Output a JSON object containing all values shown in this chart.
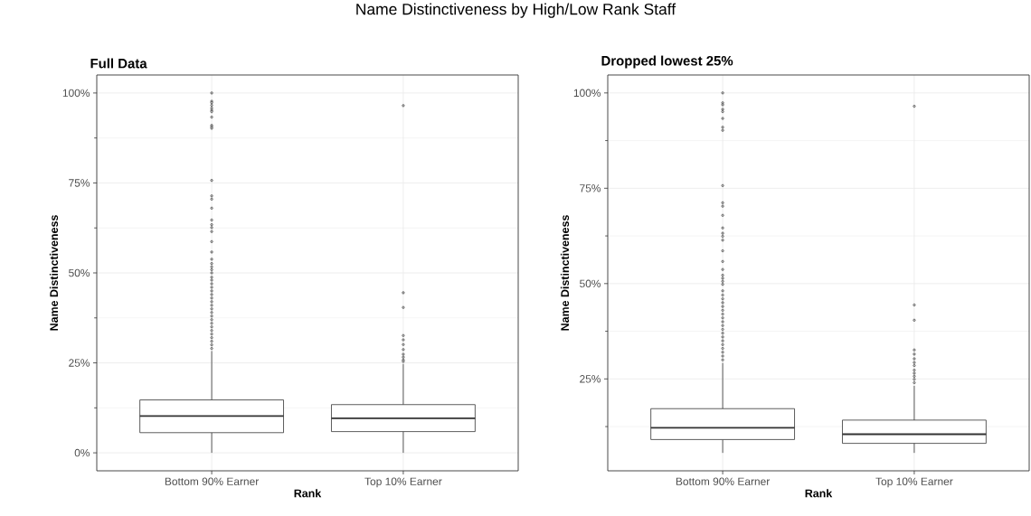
{
  "chart_data": [
    {
      "type": "box",
      "title": "Full Data",
      "xlabel": "Rank",
      "ylabel": "Name Distinctiveness",
      "annotations": [
        "Name Distinctiveness by High/Low Rank Staff"
      ],
      "categories": [
        "Bottom 90% Earner",
        "Top 10% Earner"
      ],
      "series": [
        {
          "color": "#333333",
          "boxes": [
            {
              "low": 0,
              "q1": 5.6,
              "median": 10.2,
              "q3": 14.7,
              "high": 28.3,
              "outliers": [
                100,
                97.7,
                97.3,
                96.6,
                95.8,
                95.2,
                94.8,
                93.3,
                91.0,
                90.6,
                90.2,
                75.7,
                71.4,
                70.5,
                68.0,
                64.7,
                63.4,
                62.6,
                61.5,
                58.7,
                55.8,
                53.8,
                52.6,
                51.7,
                50.9,
                50.0,
                48.8,
                48,
                47,
                46,
                45,
                44,
                43,
                42,
                41,
                40,
                39,
                38,
                37,
                36,
                35,
                34,
                33,
                32,
                31,
                30,
                29
              ]
            },
            {
              "low": 0,
              "q1": 5.9,
              "median": 9.6,
              "q3": 13.4,
              "high": 24.7,
              "outliers": [
                96.5,
                44.5,
                40.4,
                32.6,
                31.4,
                30.1,
                28.7,
                27.4,
                26.6,
                25.8,
                25.4
              ]
            }
          ]
        }
      ],
      "ylim": [
        -5,
        105
      ],
      "yticks": [
        {
          "value": 0,
          "label": "0%"
        },
        {
          "value": 25,
          "label": "25%"
        },
        {
          "value": 50,
          "label": "50%"
        },
        {
          "value": 75,
          "label": "75%"
        },
        {
          "value": 100,
          "label": "100%"
        }
      ],
      "grid": true
    },
    {
      "type": "box",
      "title": "Dropped lowest 25%",
      "xlabel": "Rank",
      "ylabel": "Name Distinctiveness",
      "categories": [
        "Bottom 90% Earner",
        "Top 10% Earner"
      ],
      "series": [
        {
          "color": "#333333",
          "boxes": [
            {
              "low": 5.6,
              "q1": 9.1,
              "median": 12.2,
              "q3": 17.2,
              "high": 29.2,
              "outliers": [
                100,
                97.4,
                96.9,
                95.7,
                95.1,
                93.3,
                91.0,
                90.2,
                75.7,
                71.2,
                70.3,
                67.9,
                64.6,
                63.2,
                62.4,
                61.4,
                58.6,
                55.8,
                53.7,
                52.2,
                51.4,
                50.6,
                49.8,
                48.1,
                47,
                46,
                45,
                44,
                43,
                42,
                41,
                40,
                39,
                38,
                37,
                36,
                35,
                34,
                33,
                32,
                31,
                30
              ]
            },
            {
              "low": 5.6,
              "q1": 8.1,
              "median": 10.5,
              "q3": 14.2,
              "high": 23.2,
              "outliers": [
                96.5,
                44.4,
                40.4,
                32.6,
                31.5,
                30.3,
                29.3,
                28.5,
                27.3,
                26.5,
                25.7,
                24.9,
                24.0
              ]
            }
          ]
        }
      ],
      "ylim": [
        0.9,
        104.7
      ],
      "yticks": [
        {
          "value": 25,
          "label": "25%"
        },
        {
          "value": 50,
          "label": "50%"
        },
        {
          "value": 75,
          "label": "75%"
        },
        {
          "value": 100,
          "label": "100%"
        }
      ],
      "grid": true
    }
  ]
}
